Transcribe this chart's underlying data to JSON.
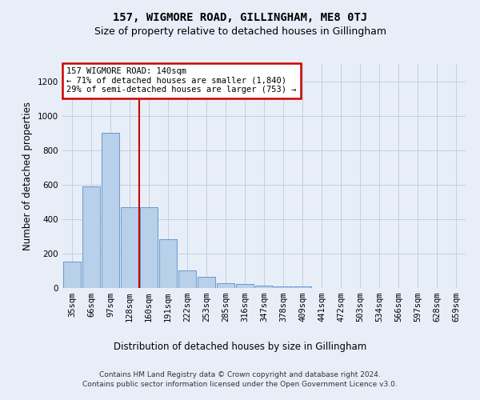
{
  "title": "157, WIGMORE ROAD, GILLINGHAM, ME8 0TJ",
  "subtitle": "Size of property relative to detached houses in Gillingham",
  "xlabel": "Distribution of detached houses by size in Gillingham",
  "ylabel": "Number of detached properties",
  "categories": [
    "35sqm",
    "66sqm",
    "97sqm",
    "128sqm",
    "160sqm",
    "191sqm",
    "222sqm",
    "253sqm",
    "285sqm",
    "316sqm",
    "347sqm",
    "378sqm",
    "409sqm",
    "441sqm",
    "472sqm",
    "503sqm",
    "534sqm",
    "566sqm",
    "597sqm",
    "628sqm",
    "659sqm"
  ],
  "values": [
    152,
    590,
    900,
    470,
    470,
    285,
    100,
    65,
    30,
    25,
    15,
    10,
    10,
    0,
    0,
    0,
    0,
    0,
    0,
    0,
    0
  ],
  "bar_color": "#b8d0ea",
  "bar_edge_color": "#6699cc",
  "vline_x": 3.5,
  "vline_color": "#cc0000",
  "annotation_text": "157 WIGMORE ROAD: 140sqm\n← 71% of detached houses are smaller (1,840)\n29% of semi-detached houses are larger (753) →",
  "annotation_box_color": "#ffffff",
  "annotation_box_edge": "#cc0000",
  "ylim": [
    0,
    1300
  ],
  "yticks": [
    0,
    200,
    400,
    600,
    800,
    1000,
    1200
  ],
  "footer_line1": "Contains HM Land Registry data © Crown copyright and database right 2024.",
  "footer_line2": "Contains public sector information licensed under the Open Government Licence v3.0.",
  "bg_color": "#e8eef8",
  "plot_bg_color": "#e8eef8",
  "title_fontsize": 10,
  "subtitle_fontsize": 9,
  "axis_label_fontsize": 8.5,
  "tick_fontsize": 7.5,
  "footer_fontsize": 6.5,
  "annot_fontsize": 7.5
}
